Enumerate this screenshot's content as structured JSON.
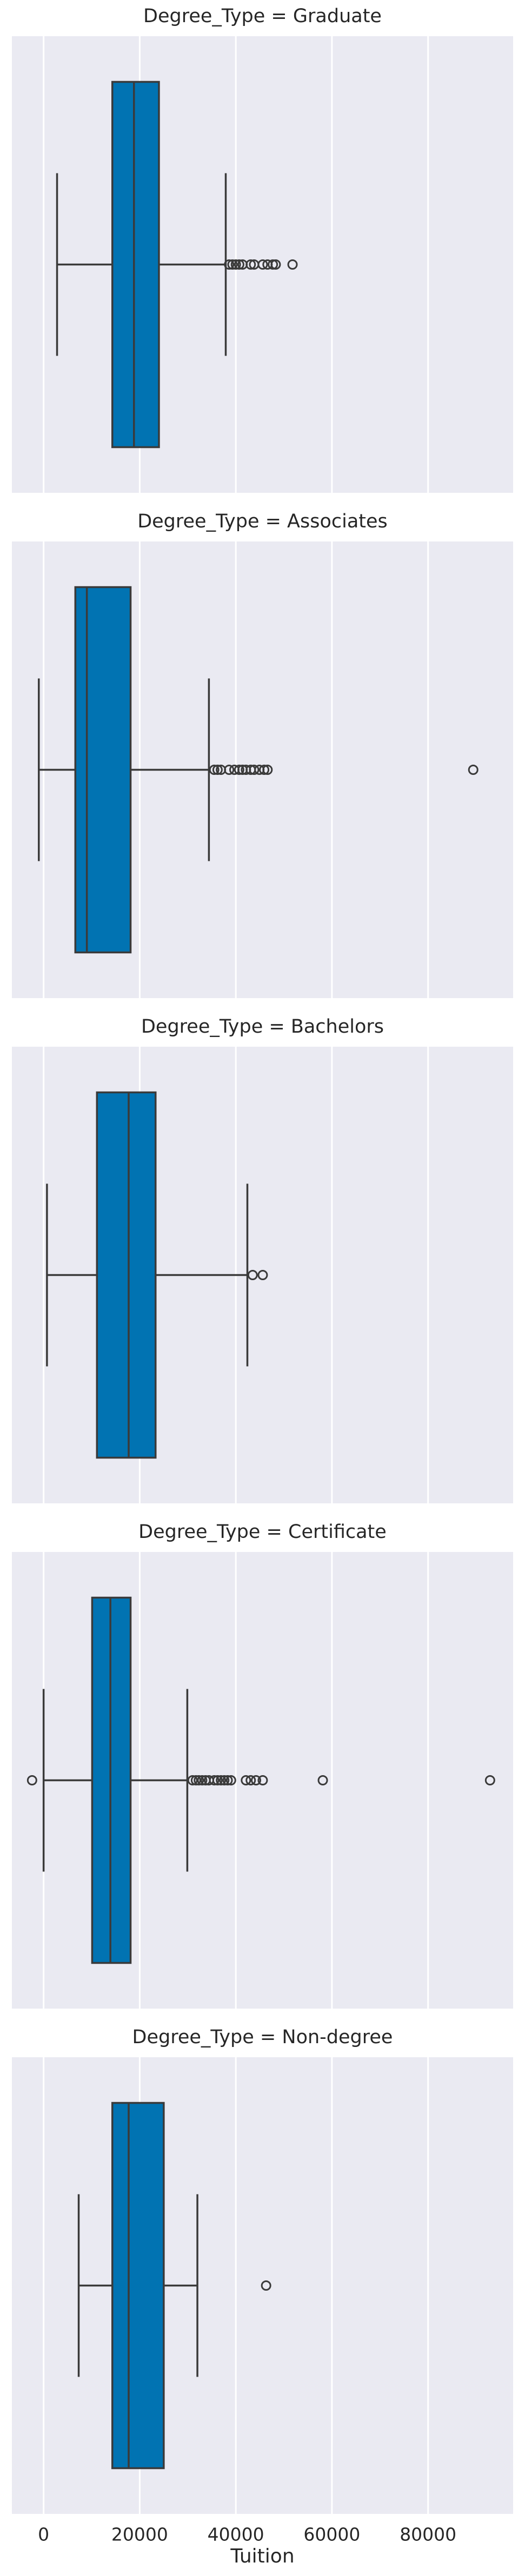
{
  "chart_data": [
    {
      "type": "box",
      "title": "Degree_Type = Graduate",
      "color": "#0173b2",
      "xlim": [
        -6600,
        97700
      ],
      "xticks": [
        0,
        20000,
        40000,
        60000,
        80000
      ],
      "grid": true,
      "box": {
        "whislo": 2800,
        "q1": 14300,
        "med": 18800,
        "q3": 24000,
        "whishi": 37900,
        "fliers": [
          38600,
          39300,
          40000,
          40700,
          41400,
          43100,
          43800,
          45600,
          46600,
          47700,
          48300,
          51800
        ]
      }
    },
    {
      "type": "box",
      "title": "Degree_Type = Associates",
      "color": "#0173b2",
      "xlim": [
        -6600,
        97700
      ],
      "xticks": [
        0,
        20000,
        40000,
        60000,
        80000
      ],
      "grid": true,
      "box": {
        "whislo": -1000,
        "q1": 6600,
        "med": 9000,
        "q3": 18100,
        "whishi": 34400,
        "fliers": [
          35500,
          36200,
          36900,
          38600,
          39700,
          40700,
          41400,
          42100,
          43100,
          43800,
          44900,
          45900,
          46600,
          89400
        ]
      }
    },
    {
      "type": "box",
      "title": "Degree_Type = Bachelors",
      "color": "#0173b2",
      "xlim": [
        -6600,
        97700
      ],
      "xticks": [
        0,
        20000,
        40000,
        60000,
        80000
      ],
      "grid": true,
      "box": {
        "whislo": 700,
        "q1": 11100,
        "med": 17700,
        "q3": 23300,
        "whishi": 42400,
        "fliers": [
          43500,
          45600
        ]
      }
    },
    {
      "type": "box",
      "title": "Degree_Type = Certificate",
      "color": "#0173b2",
      "xlim": [
        -6600,
        97700
      ],
      "xticks": [
        0,
        20000,
        40000,
        60000,
        80000
      ],
      "grid": true,
      "box": {
        "whislo": 0,
        "q1": 10100,
        "med": 13900,
        "q3": 18100,
        "whishi": 29900,
        "fliers": [
          -2400,
          31000,
          31700,
          32300,
          33000,
          33700,
          34400,
          35500,
          36200,
          36900,
          37600,
          38300,
          39000,
          42100,
          43100,
          44200,
          45600,
          58100,
          92900
        ]
      }
    },
    {
      "type": "box",
      "title": "Degree_Type = Non-degree",
      "color": "#0173b2",
      "xlim": [
        -6600,
        97700
      ],
      "xticks": [
        0,
        20000,
        40000,
        60000,
        80000
      ],
      "grid": true,
      "xlabel": "Tuition",
      "box": {
        "whislo": 7300,
        "q1": 14300,
        "med": 17700,
        "q3": 25000,
        "whishi": 32000,
        "fliers": [
          46300
        ]
      }
    }
  ]
}
